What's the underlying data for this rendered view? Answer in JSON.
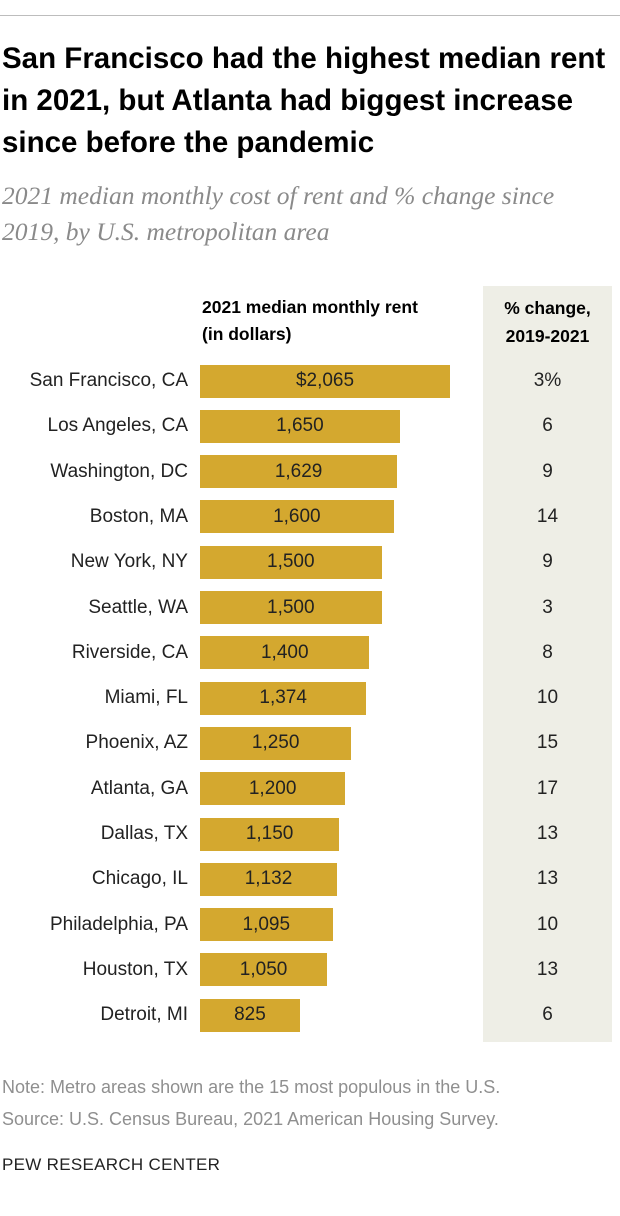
{
  "chart_data": {
    "type": "bar",
    "orientation": "horizontal",
    "title": "San Francisco had the highest median rent in 2021, but Atlanta had biggest increase since before the pandemic",
    "subtitle": "2021 median monthly cost of rent and % change since 2019, by U.S. metropolitan area",
    "categories": [
      "San Francisco, CA",
      "Los Angeles, CA",
      "Washington, DC",
      "Boston, MA",
      "New York, NY",
      "Seattle, WA",
      "Riverside, CA",
      "Miami, FL",
      "Phoenix, AZ",
      "Atlanta, GA",
      "Dallas, TX",
      "Chicago, IL",
      "Philadelphia, PA",
      "Houston, TX",
      "Detroit, MI"
    ],
    "series": [
      {
        "name": "2021 median monthly rent (in dollars)",
        "color": "#d4a82f",
        "values": [
          2065,
          1650,
          1629,
          1600,
          1500,
          1500,
          1400,
          1374,
          1250,
          1200,
          1150,
          1132,
          1095,
          1050,
          825
        ],
        "value_labels": [
          "$2,065",
          "1,650",
          "1,629",
          "1,600",
          "1,500",
          "1,500",
          "1,400",
          "1,374",
          "1,250",
          "1,200",
          "1,150",
          "1,132",
          "1,095",
          "1,050",
          "825"
        ]
      },
      {
        "name": "% change, 2019-2021",
        "values": [
          3,
          6,
          9,
          14,
          9,
          3,
          8,
          10,
          15,
          17,
          13,
          13,
          10,
          13,
          6
        ],
        "value_labels": [
          "3%",
          "6",
          "9",
          "14",
          "9",
          "3",
          "8",
          "10",
          "15",
          "17",
          "13",
          "13",
          "10",
          "13",
          "6"
        ]
      }
    ],
    "note": "Note: Metro areas shown are the 15 most populous in the U.S.",
    "source": "Source: U.S. Census Bureau, 2021 American Housing Survey.",
    "credit": "PEW RESEARCH CENTER"
  }
}
